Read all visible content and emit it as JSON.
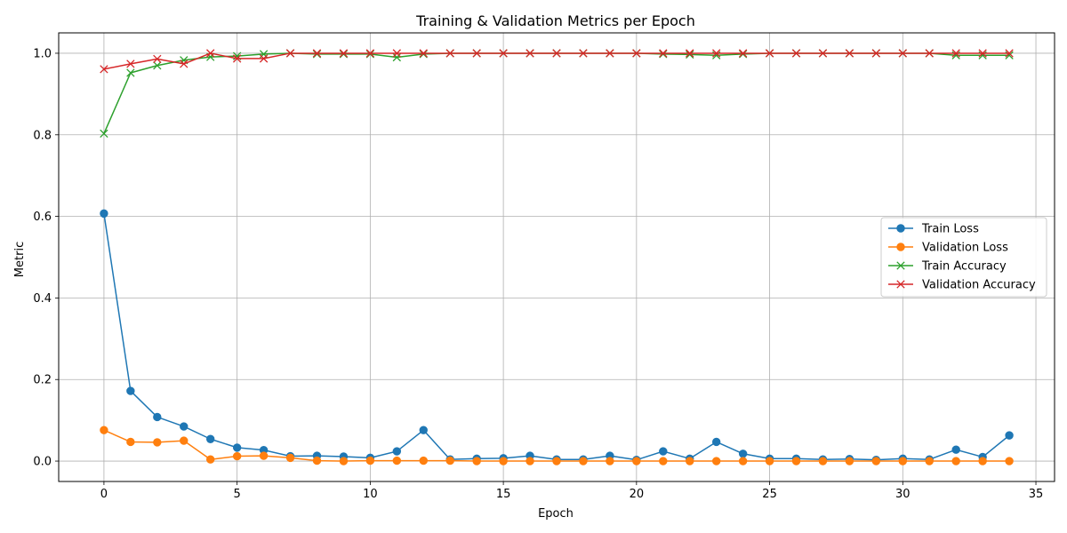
{
  "chart_data": {
    "type": "line",
    "title": "Training & Validation Metrics per Epoch",
    "xlabel": "Epoch",
    "ylabel": "Metric",
    "xlim": [
      -1.7,
      35.7
    ],
    "ylim": [
      -0.05,
      1.05
    ],
    "xticks": [
      0,
      5,
      10,
      15,
      20,
      25,
      30,
      35
    ],
    "yticks": [
      0.0,
      0.2,
      0.4,
      0.6,
      0.8,
      1.0
    ],
    "xtick_labels": [
      "0",
      "5",
      "10",
      "15",
      "20",
      "25",
      "30",
      "35"
    ],
    "ytick_labels": [
      "0.0",
      "0.2",
      "0.4",
      "0.6",
      "0.8",
      "1.0"
    ],
    "grid": true,
    "legend_position": "center-right",
    "x": [
      0,
      1,
      2,
      3,
      4,
      5,
      6,
      7,
      8,
      9,
      10,
      11,
      12,
      13,
      14,
      15,
      16,
      17,
      18,
      19,
      20,
      21,
      22,
      23,
      24,
      25,
      26,
      27,
      28,
      29,
      30,
      31,
      32,
      33,
      34
    ],
    "series": [
      {
        "name": "Train Loss",
        "color": "#1f77b4",
        "marker": "circle",
        "values": [
          0.607,
          0.172,
          0.108,
          0.085,
          0.054,
          0.033,
          0.027,
          0.012,
          0.013,
          0.011,
          0.008,
          0.024,
          0.076,
          0.004,
          0.006,
          0.007,
          0.013,
          0.004,
          0.004,
          0.013,
          0.003,
          0.024,
          0.006,
          0.047,
          0.018,
          0.006,
          0.006,
          0.004,
          0.005,
          0.003,
          0.006,
          0.004,
          0.028,
          0.01,
          0.063
        ]
      },
      {
        "name": "Validation Loss",
        "color": "#ff7f0e",
        "marker": "circle",
        "values": [
          0.076,
          0.047,
          0.046,
          0.05,
          0.004,
          0.012,
          0.013,
          0.008,
          0.001,
          0.0,
          0.001,
          0.001,
          0.001,
          0.001,
          0.0,
          0.0,
          0.0,
          0.0,
          0.0,
          0.0,
          0.0,
          0.0,
          0.0,
          0.0,
          0.0,
          0.0,
          0.0,
          0.0,
          0.0,
          0.0,
          0.0,
          0.0,
          0.0,
          0.0,
          0.0
        ]
      },
      {
        "name": "Train Accuracy",
        "color": "#2ca02c",
        "marker": "x",
        "values": [
          0.803,
          0.952,
          0.97,
          0.983,
          0.991,
          0.993,
          0.998,
          1.0,
          0.998,
          0.998,
          0.998,
          0.99,
          0.998,
          1.0,
          1.0,
          1.0,
          1.0,
          1.0,
          1.0,
          1.0,
          1.0,
          0.998,
          0.997,
          0.995,
          0.998,
          1.0,
          1.0,
          1.0,
          1.0,
          1.0,
          1.0,
          1.0,
          0.995,
          0.995,
          0.995
        ]
      },
      {
        "name": "Validation Accuracy",
        "color": "#d62728",
        "marker": "x",
        "values": [
          0.961,
          0.974,
          0.986,
          0.974,
          1.0,
          0.987,
          0.987,
          1.0,
          1.0,
          1.0,
          1.0,
          1.0,
          1.0,
          1.0,
          1.0,
          1.0,
          1.0,
          1.0,
          1.0,
          1.0,
          1.0,
          1.0,
          1.0,
          1.0,
          1.0,
          1.0,
          1.0,
          1.0,
          1.0,
          1.0,
          1.0,
          1.0,
          1.0,
          1.0,
          1.0
        ]
      }
    ]
  }
}
